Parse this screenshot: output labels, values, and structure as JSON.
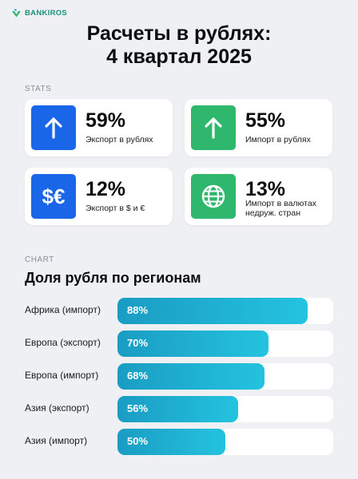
{
  "brand": {
    "name": "BANKIROS",
    "color": "#1f8f7a"
  },
  "title": {
    "line1": "Расчеты в рублях:",
    "line2": "4 квартал 2025"
  },
  "stats": {
    "label": "STATS",
    "cards": [
      {
        "value": "59%",
        "caption": "Экспорт в рублях",
        "icon": "arrow-up-icon",
        "color": "#1966e8"
      },
      {
        "value": "55%",
        "caption": "Импорт в рублях",
        "icon": "arrow-up-icon",
        "color": "#2fb86d"
      },
      {
        "value": "12%",
        "caption": "Экспорт в $ и €",
        "icon": "dollar-euro-icon",
        "icon_text": "$€",
        "color": "#1966e8"
      },
      {
        "value": "13%",
        "caption_line1": "Импорт в валютах",
        "caption_line2": "недруж. стран",
        "icon": "globe-icon",
        "color": "#2fb86d"
      }
    ]
  },
  "chart": {
    "label": "CHART"
  },
  "chart_data": {
    "type": "bar",
    "orientation": "horizontal",
    "title": "Доля рубля по регионам",
    "categories": [
      "Африка (импорт)",
      "Европа (экспорт)",
      "Европа (импорт)",
      "Азия (экспорт)",
      "Азия (импорт)"
    ],
    "values": [
      88,
      70,
      68,
      56,
      50
    ],
    "value_labels": [
      "88%",
      "70%",
      "68%",
      "56%",
      "50%"
    ],
    "xlim": [
      0,
      100
    ],
    "grid": false,
    "bar_color": "#1fb1d3",
    "track_color": "#ffffff"
  }
}
